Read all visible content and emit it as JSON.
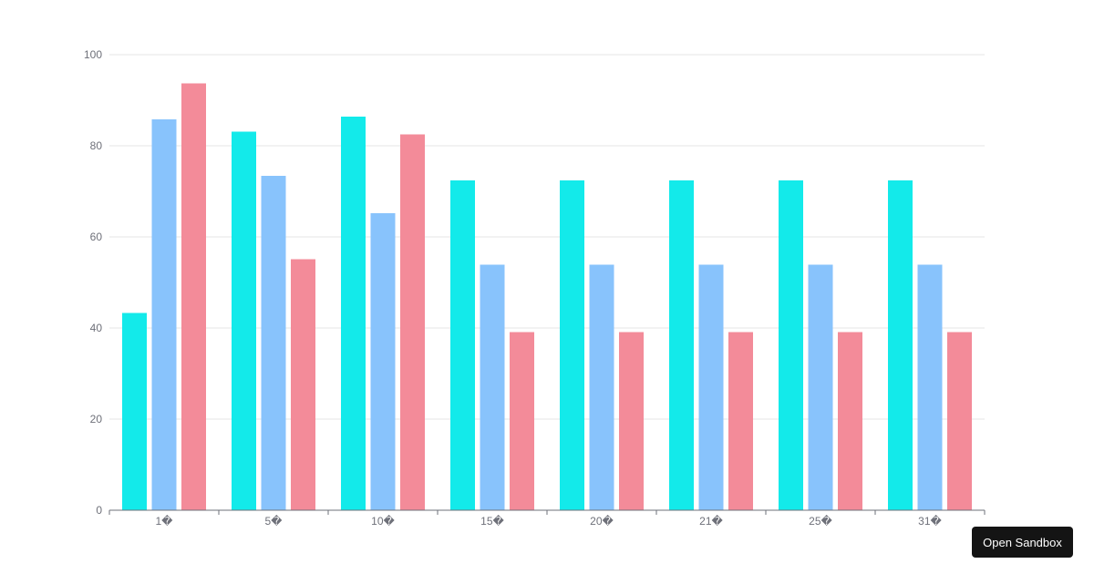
{
  "chart_data": {
    "type": "bar",
    "categories": [
      "1�",
      "5�",
      "10�",
      "15�",
      "20�",
      "21�",
      "25�",
      "31�"
    ],
    "series": [
      {
        "values": [
          43.3,
          83.1,
          86.4,
          72.4,
          72.4,
          72.4,
          72.4,
          72.4
        ]
      },
      {
        "values": [
          85.8,
          73.4,
          65.2,
          53.9,
          53.9,
          53.9,
          53.9,
          53.9
        ]
      },
      {
        "values": [
          93.7,
          55.1,
          82.5,
          39.1,
          39.1,
          39.1,
          39.1,
          39.1
        ]
      }
    ],
    "ylim": [
      0,
      100
    ],
    "yticks": [
      0,
      20,
      40,
      60,
      80,
      100
    ],
    "grid": true,
    "colors": [
      "#13eaea",
      "#88c3fc",
      "#f38b99"
    ]
  },
  "sandbox_button": {
    "label": "Open Sandbox"
  }
}
